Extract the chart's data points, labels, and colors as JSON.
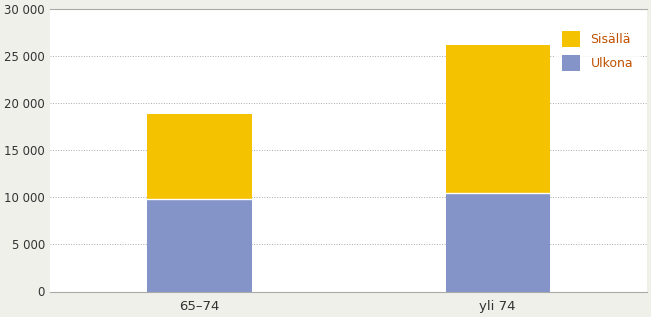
{
  "categories": [
    "65–74",
    "yli 74"
  ],
  "ulkona": [
    9800,
    10500
  ],
  "sisalla": [
    9100,
    15700
  ],
  "bar_color_ulkona": "#8494c8",
  "bar_color_sisalla": "#f5c200",
  "bar_width": 0.35,
  "ylim": [
    0,
    30000
  ],
  "yticks": [
    0,
    5000,
    10000,
    15000,
    20000,
    25000,
    30000
  ],
  "ytick_labels": [
    "0",
    "5 000",
    "10 000",
    "15 000",
    "20 000",
    "25 000",
    "30 000"
  ],
  "legend_labels": [
    "Sisällä",
    "Ulkona"
  ],
  "figure_bg": "#f0f0eb",
  "plot_bg": "#ffffff",
  "grid_color": "#555555",
  "spine_color": "#aaaaaa",
  "text_color": "#333333",
  "legend_text_color": "#c05000"
}
